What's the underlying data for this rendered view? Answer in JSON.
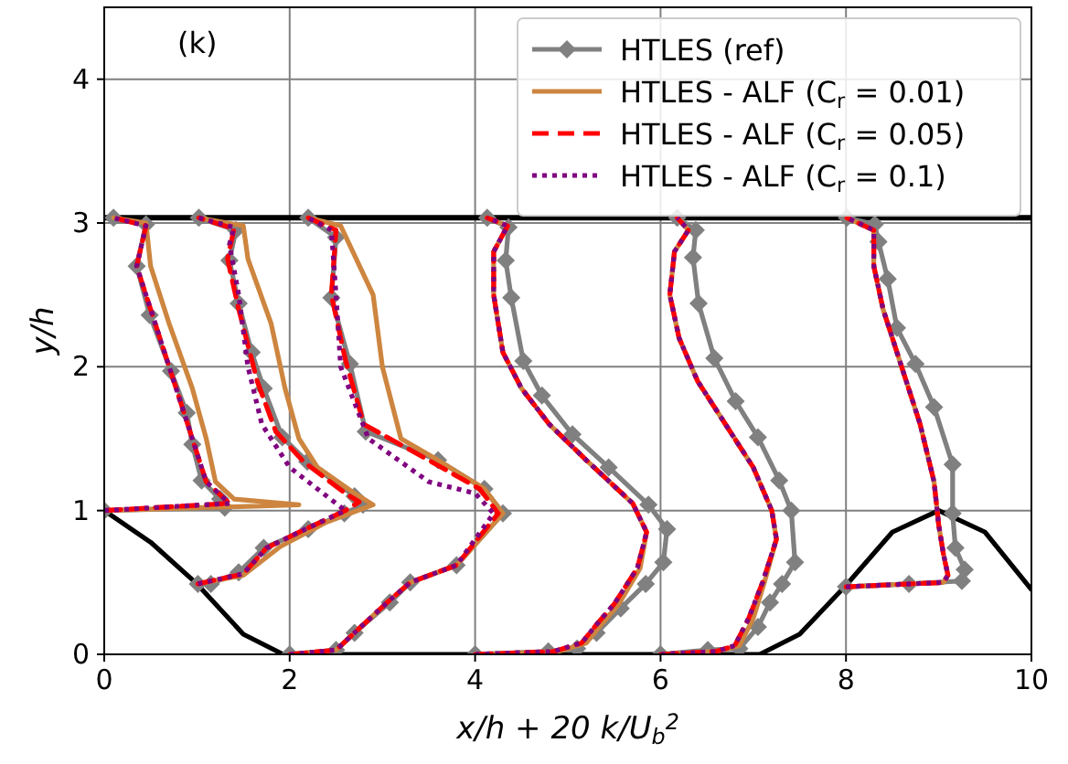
{
  "chart_data": {
    "type": "line",
    "xlabel": "x/h + 20 k/U$_{b}$$^{2}$",
    "ylabel": "y/h",
    "annotations": [
      "(k)"
    ],
    "xlim": [
      0,
      10
    ],
    "ylim": [
      0,
      4.5
    ],
    "xticks": [
      0,
      2,
      4,
      6,
      8,
      10
    ],
    "yticks": [
      0,
      1,
      2,
      3,
      4
    ],
    "grid": true,
    "legend": "top right",
    "ref_lines": [
      {
        "axis": "y",
        "value": 3.036,
        "color": "#000000"
      }
    ],
    "series": [
      {
        "color": "#000000",
        "marker": "none",
        "line_style": "solid",
        "x": [
          0,
          0.5,
          1,
          1.5,
          1.93,
          7.07,
          7.5,
          8,
          8.5,
          9,
          9.5,
          10
        ],
        "values": [
          1,
          0.78,
          0.49,
          0.14,
          0,
          0,
          0.14,
          0.48,
          0.85,
          1,
          0.85,
          0.45
        ]
      },
      {
        "name": "HTLES (ref)",
        "color": "#808080",
        "marker": "diamond",
        "line_style": "solid",
        "x": [
          0,
          1.3,
          1.25,
          1.05,
          0.95,
          0.89,
          0.72,
          0.49,
          0.35,
          0.45,
          0.1,
          null,
          1.01,
          1.15,
          1.45,
          1.72,
          2.2,
          2.59,
          2.79,
          2.7,
          2.19,
          1.92,
          1.72,
          1.59,
          1.45,
          1.35,
          1.42,
          1.02,
          null,
          2.0,
          2.5,
          2.7,
          3.08,
          3.3,
          3.8,
          4.3,
          4.1,
          3.6,
          2.82,
          2.65,
          2.45,
          2.5,
          2.2,
          null,
          4.0,
          4.79,
          5.1,
          5.31,
          5.57,
          5.84,
          6.03,
          6.07,
          5.87,
          5.44,
          5.05,
          4.72,
          4.52,
          4.39,
          4.33,
          4.36,
          4.13,
          null,
          6.0,
          6.51,
          6.85,
          7.05,
          7.18,
          7.31,
          7.45,
          7.41,
          7.28,
          7.05,
          6.81,
          6.58,
          6.41,
          6.35,
          6.38,
          6.18,
          null,
          8.0,
          8.68,
          9.25,
          9.28,
          9.18,
          9.15,
          9.15,
          8.95,
          8.75,
          8.55,
          8.45,
          8.35,
          8.31,
          8.01
        ],
        "values": [
          1.0,
          1.02,
          1.08,
          1.21,
          1.46,
          1.68,
          1.97,
          2.36,
          2.7,
          2.99,
          3.036,
          null,
          0.49,
          0.49,
          0.57,
          0.74,
          0.87,
          0.98,
          1.04,
          1.1,
          1.34,
          1.51,
          1.85,
          2.1,
          2.44,
          2.74,
          2.95,
          3.036,
          null,
          0,
          0.03,
          0.15,
          0.36,
          0.5,
          0.62,
          0.98,
          1.15,
          1.35,
          1.55,
          2.02,
          2.48,
          2.9,
          3.036,
          null,
          0,
          0.02,
          0.04,
          0.15,
          0.32,
          0.49,
          0.64,
          0.87,
          1.04,
          1.3,
          1.53,
          1.8,
          2.04,
          2.48,
          2.74,
          2.97,
          3.036,
          null,
          0,
          0.03,
          0.04,
          0.19,
          0.36,
          0.49,
          0.64,
          1.0,
          1.21,
          1.51,
          1.76,
          2.06,
          2.44,
          2.76,
          2.95,
          3.036,
          null,
          0.47,
          0.49,
          0.51,
          0.59,
          0.74,
          0.98,
          1.32,
          1.72,
          2.02,
          2.27,
          2.61,
          2.87,
          2.99,
          3.036
        ]
      },
      {
        "name": "HTLES - ALF (C$_{r}$ = 0.01)",
        "color": "#cd853f",
        "marker": "none",
        "line_style": "solid",
        "x": [
          0,
          2.1,
          1.4,
          1.2,
          1.1,
          0.95,
          0.7,
          0.5,
          0.45,
          0.1,
          null,
          1.01,
          1.5,
          1.9,
          2.4,
          2.9,
          2.7,
          2.3,
          2.1,
          1.95,
          1.8,
          1.55,
          1.5,
          1.02,
          null,
          2.0,
          2.5,
          2.7,
          3.05,
          3.3,
          3.8,
          4.3,
          4.1,
          3.6,
          3.2,
          3.0,
          2.9,
          2.55,
          2.2,
          null,
          4.0,
          4.9,
          5.2,
          5.35,
          5.55,
          5.78,
          5.85,
          5.7,
          5.2,
          4.8,
          4.5,
          4.3,
          4.2,
          4.2,
          4.35,
          4.13,
          null,
          6.0,
          6.6,
          6.85,
          7.0,
          7.12,
          7.25,
          7.2,
          7.0,
          6.7,
          6.4,
          6.2,
          6.1,
          6.15,
          6.3,
          6.18,
          null,
          8.0,
          9.05,
          9.1,
          9.05,
          9.0,
          8.95,
          8.8,
          8.6,
          8.4,
          8.3,
          8.3,
          8.01
        ],
        "values": [
          1.0,
          1.04,
          1.08,
          1.2,
          1.5,
          1.85,
          2.3,
          2.7,
          3.0,
          3.036,
          null,
          0.49,
          0.55,
          0.75,
          0.92,
          1.04,
          1.12,
          1.3,
          1.5,
          1.85,
          2.3,
          2.75,
          2.98,
          3.036,
          null,
          0,
          0.03,
          0.15,
          0.36,
          0.5,
          0.62,
          0.98,
          1.15,
          1.35,
          1.5,
          2.0,
          2.5,
          2.98,
          3.036,
          null,
          0,
          0.02,
          0.08,
          0.2,
          0.35,
          0.6,
          0.85,
          1.05,
          1.35,
          1.6,
          1.85,
          2.1,
          2.5,
          2.8,
          2.98,
          3.036,
          null,
          0,
          0.02,
          0.06,
          0.25,
          0.5,
          0.8,
          1.0,
          1.3,
          1.6,
          1.9,
          2.2,
          2.5,
          2.8,
          2.95,
          3.036,
          null,
          0.47,
          0.5,
          0.55,
          0.7,
          0.9,
          1.2,
          1.6,
          2.0,
          2.4,
          2.7,
          2.95,
          3.036
        ]
      },
      {
        "name": "HTLES - ALF (C$_{r}$ = 0.05)",
        "color": "#ff0000",
        "marker": "none",
        "line_style": "dashed",
        "x": [
          0,
          1.35,
          1.1,
          0.9,
          0.6,
          0.35,
          0.45,
          0.1,
          null,
          1.01,
          1.5,
          1.75,
          2.2,
          2.6,
          2.75,
          2.6,
          2.15,
          1.85,
          1.65,
          1.45,
          1.33,
          1.4,
          1.02,
          null,
          2.0,
          2.5,
          2.7,
          3.05,
          3.3,
          3.8,
          4.25,
          4.05,
          3.5,
          2.8,
          2.6,
          2.45,
          2.5,
          2.2,
          null,
          4.0,
          4.85,
          5.15,
          5.3,
          5.5,
          5.75,
          5.85,
          5.7,
          5.2,
          4.8,
          4.5,
          4.3,
          4.2,
          4.2,
          4.35,
          4.13,
          null,
          6.0,
          6.6,
          6.8,
          6.95,
          7.1,
          7.25,
          7.2,
          7.0,
          6.7,
          6.4,
          6.2,
          6.1,
          6.15,
          6.3,
          6.18,
          null,
          8.0,
          9.05,
          9.1,
          9.05,
          9.0,
          8.95,
          8.8,
          8.6,
          8.4,
          8.3,
          8.3,
          8.01
        ],
        "values": [
          1.0,
          1.05,
          1.2,
          1.6,
          2.2,
          2.7,
          2.98,
          3.036,
          null,
          0.49,
          0.56,
          0.74,
          0.88,
          1.0,
          1.06,
          1.12,
          1.34,
          1.55,
          1.9,
          2.4,
          2.75,
          2.96,
          3.036,
          null,
          0,
          0.03,
          0.15,
          0.36,
          0.5,
          0.62,
          0.98,
          1.15,
          1.35,
          1.6,
          2.05,
          2.5,
          2.95,
          3.036,
          null,
          0,
          0.02,
          0.08,
          0.2,
          0.35,
          0.6,
          0.85,
          1.05,
          1.35,
          1.6,
          1.85,
          2.1,
          2.5,
          2.8,
          2.98,
          3.036,
          null,
          0,
          0.02,
          0.06,
          0.25,
          0.5,
          0.8,
          1.0,
          1.3,
          1.6,
          1.9,
          2.2,
          2.5,
          2.8,
          2.95,
          3.036,
          null,
          0.47,
          0.5,
          0.55,
          0.7,
          0.9,
          1.2,
          1.6,
          2.0,
          2.4,
          2.7,
          2.95,
          3.036
        ]
      },
      {
        "name": "HTLES - ALF (C$_{r}$ = 0.1)",
        "color": "#800080",
        "marker": "none",
        "line_style": "dotted",
        "x": [
          0,
          1.35,
          1.1,
          0.9,
          0.6,
          0.35,
          0.45,
          0.1,
          null,
          1.01,
          1.5,
          1.75,
          2.2,
          2.6,
          2.5,
          2.0,
          1.7,
          1.55,
          1.45,
          1.35,
          1.4,
          1.02,
          null,
          2.0,
          2.5,
          2.7,
          3.05,
          3.3,
          3.8,
          4.2,
          4.0,
          3.5,
          2.85,
          2.55,
          2.5,
          2.45,
          2.2,
          null,
          4.0,
          4.85,
          5.15,
          5.3,
          5.5,
          5.75,
          5.85,
          5.7,
          5.2,
          4.8,
          4.5,
          4.3,
          4.2,
          4.2,
          4.35,
          4.13,
          null,
          6.0,
          6.6,
          6.8,
          6.95,
          7.1,
          7.25,
          7.2,
          7.0,
          6.7,
          6.4,
          6.2,
          6.1,
          6.15,
          6.3,
          6.18,
          null,
          8.0,
          9.05,
          9.1,
          9.05,
          9.0,
          8.95,
          8.8,
          8.6,
          8.4,
          8.3,
          8.3,
          8.01
        ],
        "values": [
          1.0,
          1.05,
          1.2,
          1.6,
          2.2,
          2.7,
          2.98,
          3.036,
          null,
          0.49,
          0.56,
          0.74,
          0.88,
          1.0,
          1.05,
          1.3,
          1.6,
          2.0,
          2.5,
          2.85,
          2.97,
          3.036,
          null,
          0,
          0.03,
          0.15,
          0.36,
          0.5,
          0.62,
          0.98,
          1.12,
          1.2,
          1.5,
          2.0,
          2.5,
          2.95,
          3.036,
          null,
          0,
          0.02,
          0.08,
          0.2,
          0.35,
          0.6,
          0.85,
          1.05,
          1.35,
          1.6,
          1.85,
          2.1,
          2.5,
          2.8,
          2.98,
          3.036,
          null,
          0,
          0.02,
          0.06,
          0.25,
          0.5,
          0.8,
          1.0,
          1.3,
          1.6,
          1.9,
          2.2,
          2.5,
          2.8,
          2.95,
          3.036,
          null,
          0.47,
          0.5,
          0.55,
          0.7,
          0.9,
          1.2,
          1.6,
          2.0,
          2.4,
          2.7,
          2.95,
          3.036
        ]
      }
    ]
  }
}
